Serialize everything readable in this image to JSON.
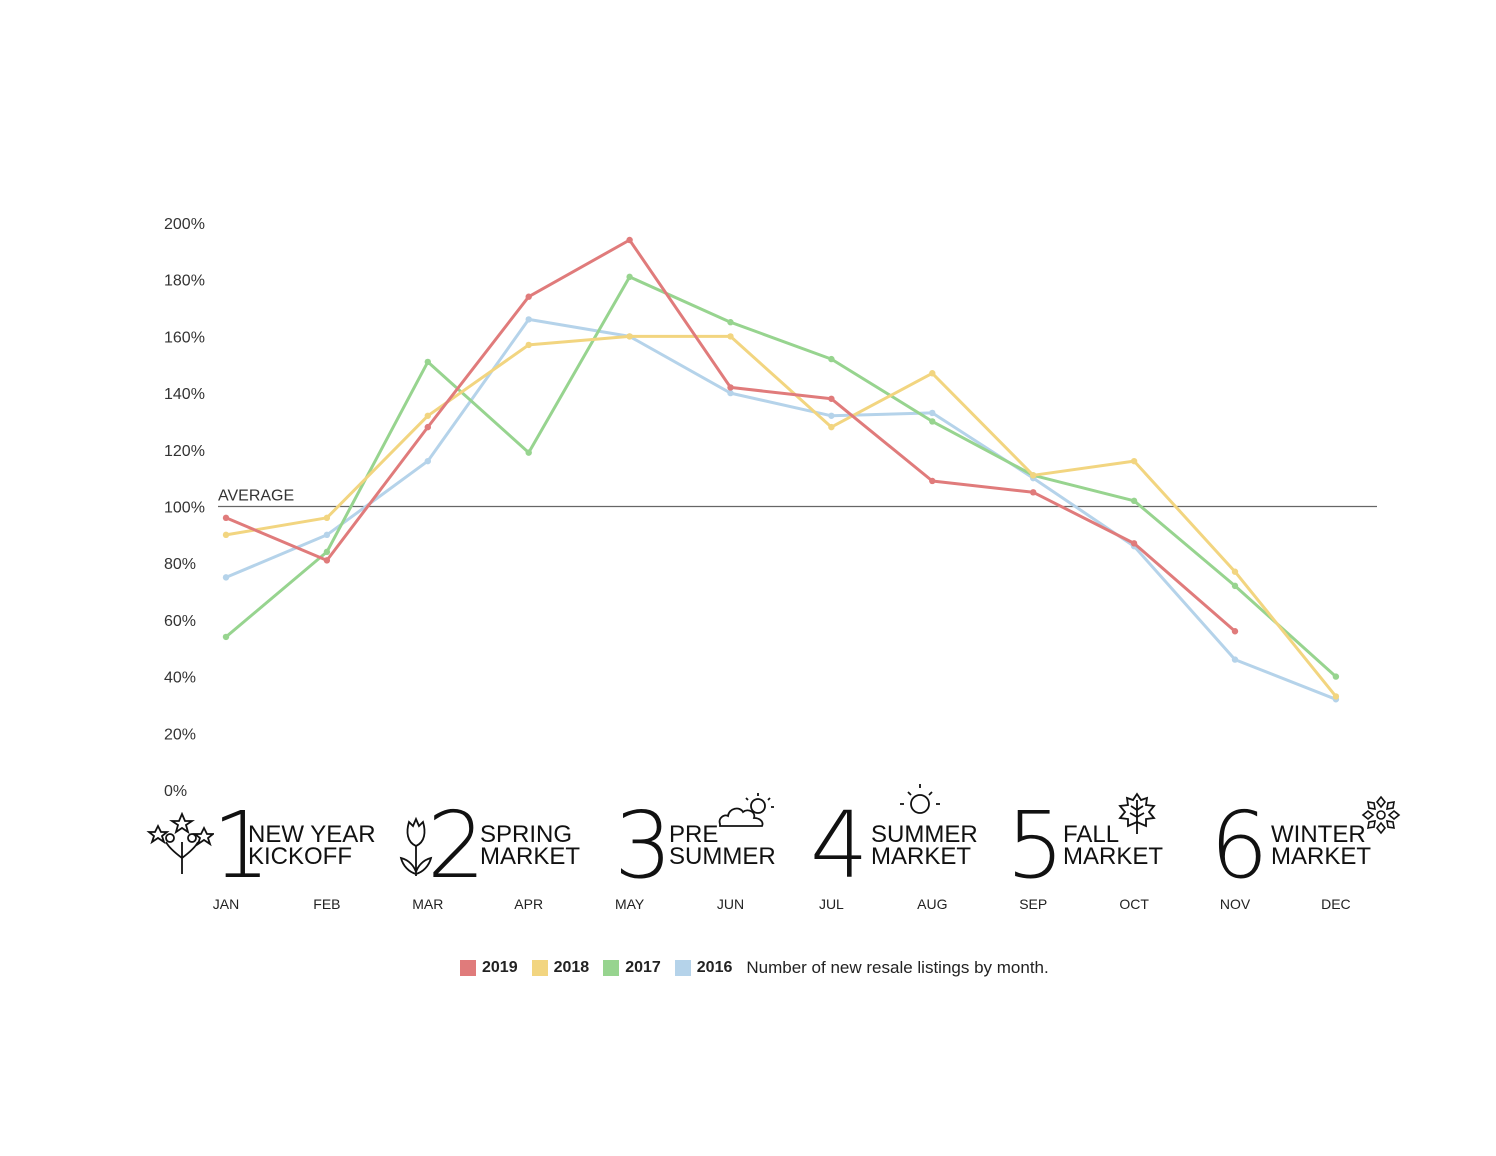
{
  "chart_data": {
    "type": "line",
    "categories": [
      "JAN",
      "FEB",
      "MAR",
      "APR",
      "MAY",
      "JUN",
      "JUL",
      "AUG",
      "SEP",
      "OCT",
      "NOV",
      "DEC"
    ],
    "y_ticks": [
      "0%",
      "20%",
      "40%",
      "60%",
      "80%",
      "100%",
      "120%",
      "140%",
      "160%",
      "180%",
      "200%"
    ],
    "ylim": [
      0,
      200
    ],
    "reference_line": {
      "value": 100,
      "label": "AVERAGE"
    },
    "series": [
      {
        "name": "2019",
        "color": "#e07b7b",
        "values": [
          96,
          81,
          128,
          174,
          194,
          142,
          138,
          109,
          105,
          87,
          56,
          null
        ]
      },
      {
        "name": "2018",
        "color": "#f2d580",
        "values": [
          90,
          96,
          132,
          157,
          160,
          160,
          128,
          147,
          111,
          116,
          77,
          33
        ]
      },
      {
        "name": "2017",
        "color": "#97d48f",
        "values": [
          54,
          84,
          151,
          119,
          181,
          165,
          152,
          130,
          111,
          102,
          72,
          40
        ]
      },
      {
        "name": "2016",
        "color": "#b5d3ea",
        "values": [
          75,
          90,
          116,
          166,
          160,
          140,
          132,
          133,
          110,
          86,
          46,
          32
        ]
      }
    ],
    "legend_description": "Number of new resale listings by month."
  },
  "seasons": [
    {
      "number": "1",
      "line1": "NEW YEAR",
      "line2": "KICKOFF",
      "icon": "fireworks-icon"
    },
    {
      "number": "2",
      "line1": "SPRING",
      "line2": "MARKET",
      "icon": "tulip-icon"
    },
    {
      "number": "3",
      "line1": "PRE",
      "line2": "SUMMER",
      "icon": "sun-cloud-icon"
    },
    {
      "number": "4",
      "line1": "SUMMER",
      "line2": "MARKET",
      "icon": "sun-icon"
    },
    {
      "number": "5",
      "line1": "FALL",
      "line2": "MARKET",
      "icon": "leaf-icon"
    },
    {
      "number": "6",
      "line1": "WINTER",
      "line2": "MARKET",
      "icon": "snowflake-icon"
    }
  ]
}
